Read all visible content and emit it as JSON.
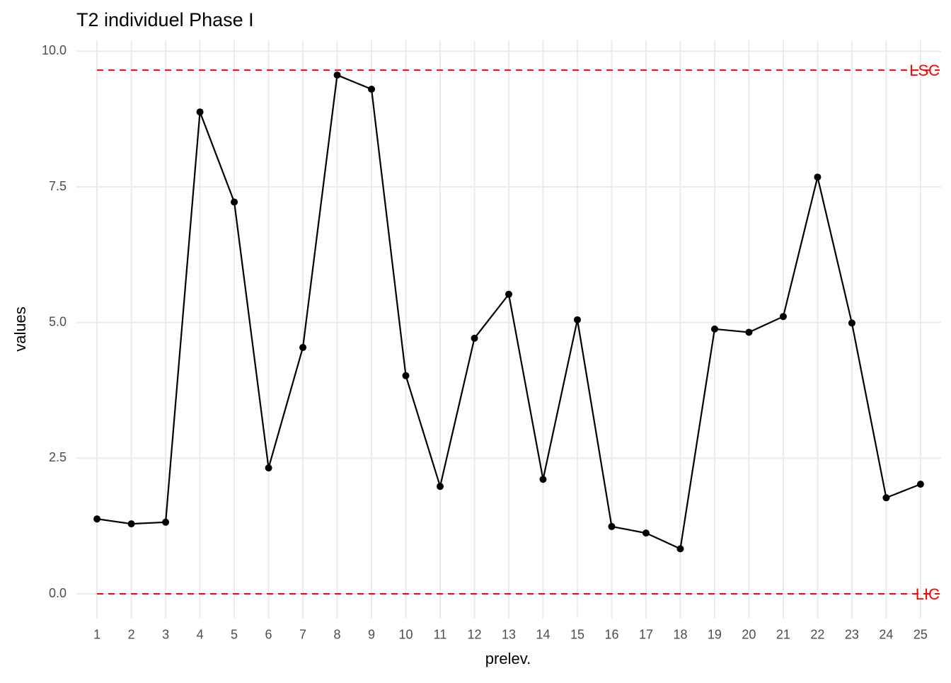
{
  "chart_data": {
    "type": "line",
    "title": "T2 individuel Phase I",
    "x_label": "prelev.",
    "y_label": "values",
    "x": [
      1,
      2,
      3,
      4,
      5,
      6,
      7,
      8,
      9,
      10,
      11,
      12,
      13,
      14,
      15,
      16,
      17,
      18,
      19,
      20,
      21,
      22,
      23,
      24,
      25
    ],
    "series": [
      {
        "name": "T2",
        "color": "#000000",
        "values": [
          1.38,
          1.29,
          1.32,
          8.88,
          7.22,
          2.32,
          4.54,
          9.56,
          9.3,
          4.02,
          1.98,
          4.71,
          5.52,
          2.11,
          5.05,
          1.24,
          1.12,
          0.83,
          4.88,
          4.82,
          5.11,
          7.68,
          4.99,
          1.77,
          2.02
        ]
      }
    ],
    "xlim": [
      0.4,
      25.6
    ],
    "xticks": [
      1,
      2,
      3,
      4,
      5,
      6,
      7,
      8,
      9,
      10,
      11,
      12,
      13,
      14,
      15,
      16,
      17,
      18,
      19,
      20,
      21,
      22,
      23,
      24,
      25
    ],
    "ylim": [
      -0.45,
      10.2
    ],
    "yticks": [
      {
        "value": 0,
        "label": "0.0"
      },
      2.5,
      {
        "value": 5,
        "label": "5.0"
      },
      7.5,
      {
        "value": 10,
        "label": "10.0"
      }
    ],
    "grid": true,
    "control_lines": [
      {
        "name": "LSC",
        "value": 9.65,
        "color": "#ff0000"
      },
      {
        "name": "LIC",
        "value": 0,
        "color": "#ff0000"
      }
    ]
  }
}
